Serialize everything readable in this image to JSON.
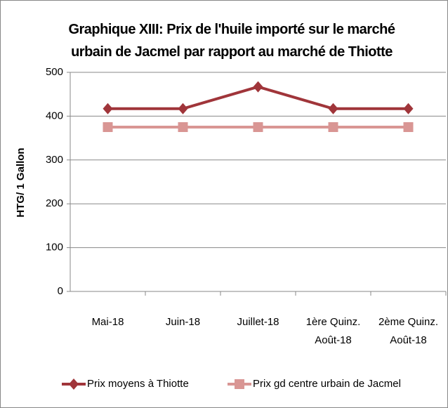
{
  "chart_data": {
    "type": "line",
    "title": "Graphique XIII: Prix de l'huile importé sur le marché urbain de Jacmel par rapport au marché de Thiotte",
    "y_label": "HTG/ 1 Gallon",
    "categories": [
      "Mai-18",
      "Juin-18",
      "Juillet-18",
      "1ère Quinz. Août-18",
      "2ème Quinz. Août-18"
    ],
    "series": [
      {
        "name": "Prix moyens à Thiotte",
        "color": "#a0353a",
        "marker": "diamond",
        "values": [
          417,
          417,
          467,
          417,
          417
        ]
      },
      {
        "name": "Prix gd centre urbain de Jacmel",
        "color": "#d99694",
        "marker": "square",
        "values": [
          375,
          375,
          375,
          375,
          375
        ]
      }
    ],
    "ylim": [
      0,
      500
    ],
    "yticks": [
      0,
      100,
      200,
      300,
      400,
      500
    ],
    "grid": true,
    "legend": "bottom"
  }
}
